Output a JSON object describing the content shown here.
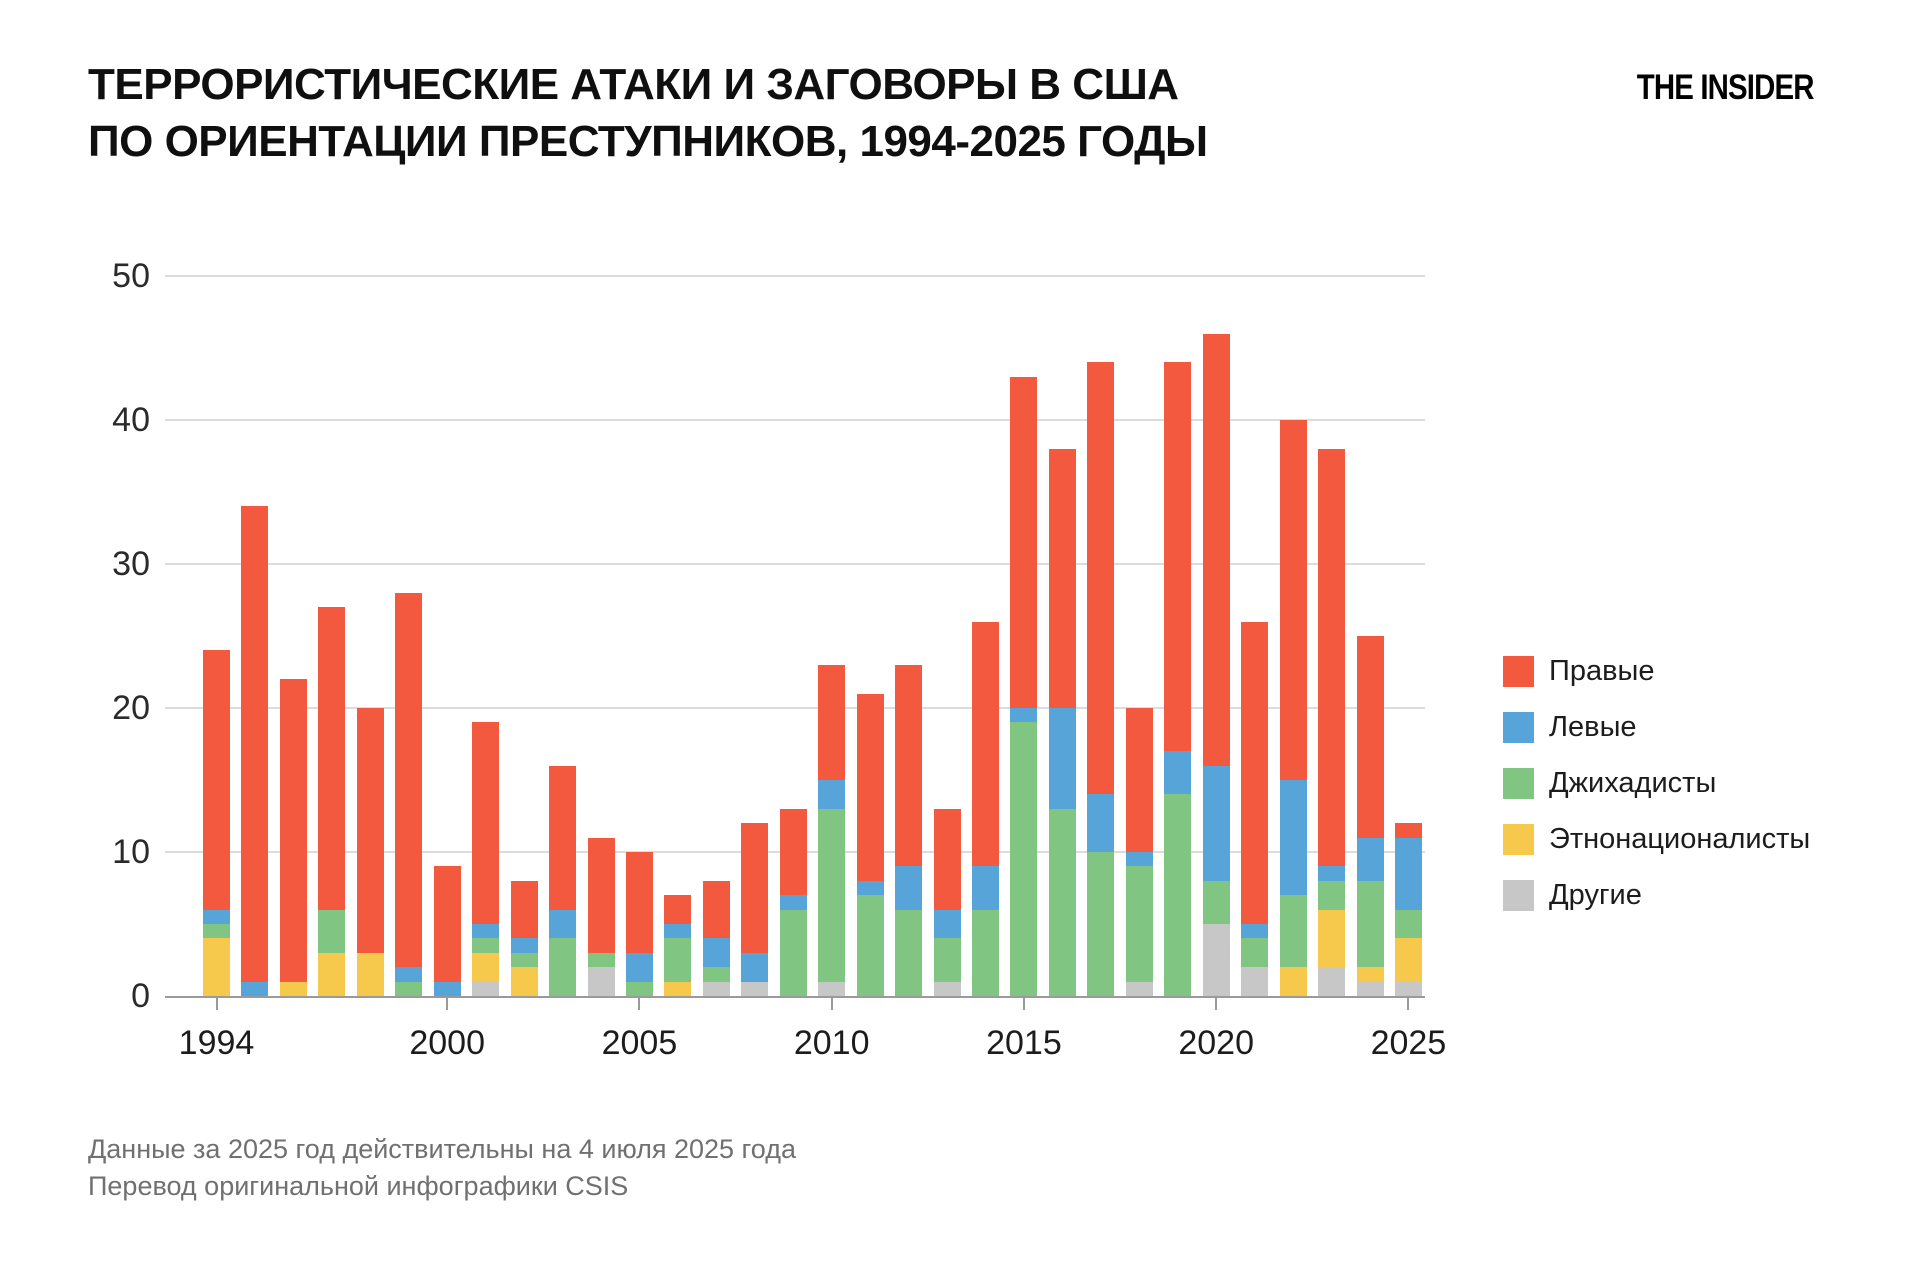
{
  "title": {
    "line1": "ТЕРРОРИСТИЧЕСКИЕ АТАКИ И ЗАГОВОРЫ В США",
    "line2": "ПО ОРИЕНТАЦИИ ПРЕСТУПНИКОВ, 1994-2025 ГОДЫ"
  },
  "logo": {
    "text": "THE INSIDER"
  },
  "footnote": {
    "line1": "Данные за 2025 год действительны на 4 июля 2025 года",
    "line2": "Перевод оригинальной инфографики CSIS"
  },
  "chart_data": {
    "type": "bar",
    "subtype": "stacked-vertical",
    "x": [
      1994,
      1995,
      1996,
      1997,
      1998,
      1999,
      2000,
      2001,
      2002,
      2003,
      2004,
      2005,
      2006,
      2007,
      2008,
      2009,
      2010,
      2011,
      2012,
      2013,
      2014,
      2015,
      2016,
      2017,
      2018,
      2019,
      2020,
      2021,
      2022,
      2023,
      2024,
      2025
    ],
    "series": [
      {
        "id": "right",
        "label": "Правые",
        "color": "#F2593F",
        "values": [
          18,
          33,
          21,
          21,
          17,
          26,
          8,
          14,
          4,
          10,
          8,
          7,
          2,
          4,
          9,
          6,
          8,
          13,
          14,
          7,
          17,
          23,
          18,
          30,
          10,
          27,
          30,
          21,
          25,
          29,
          14,
          1
        ]
      },
      {
        "id": "left",
        "label": "Левые",
        "color": "#57A5D8",
        "values": [
          1,
          1,
          0,
          0,
          0,
          1,
          1,
          1,
          1,
          2,
          0,
          2,
          1,
          2,
          2,
          1,
          2,
          1,
          3,
          2,
          3,
          1,
          7,
          4,
          1,
          3,
          8,
          1,
          8,
          1,
          3,
          5
        ]
      },
      {
        "id": "jihadists",
        "label": "Джихадисты",
        "color": "#80C682",
        "values": [
          1,
          0,
          0,
          3,
          0,
          1,
          0,
          1,
          1,
          4,
          1,
          1,
          3,
          1,
          0,
          6,
          12,
          7,
          6,
          3,
          6,
          19,
          13,
          10,
          8,
          14,
          3,
          2,
          5,
          2,
          6,
          2
        ]
      },
      {
        "id": "ethnonationalists",
        "label": "Этнонационалисты",
        "color": "#F6C94D",
        "values": [
          4,
          0,
          1,
          3,
          3,
          0,
          0,
          2,
          2,
          0,
          0,
          0,
          1,
          0,
          0,
          0,
          0,
          0,
          0,
          0,
          0,
          0,
          0,
          0,
          0,
          0,
          0,
          0,
          2,
          4,
          1,
          3
        ]
      },
      {
        "id": "others",
        "label": "Другие",
        "color": "#C7C7C7",
        "values": [
          0,
          0,
          0,
          0,
          0,
          0,
          0,
          1,
          0,
          0,
          2,
          0,
          0,
          1,
          1,
          0,
          1,
          0,
          0,
          1,
          0,
          0,
          0,
          0,
          1,
          0,
          5,
          2,
          0,
          2,
          1,
          1
        ]
      }
    ],
    "stack_bottom_to_top": [
      "others",
      "ethnonationalists",
      "jihadists",
      "left",
      "right"
    ],
    "y_axis": {
      "min": 0,
      "max": 50,
      "tick_step": 10,
      "ticks": [
        0,
        10,
        20,
        30,
        40,
        50
      ],
      "grid": true
    },
    "x_axis": {
      "tick_years": [
        1994,
        2000,
        2005,
        2010,
        2015,
        2020,
        2025
      ]
    },
    "legend_position": "right"
  }
}
